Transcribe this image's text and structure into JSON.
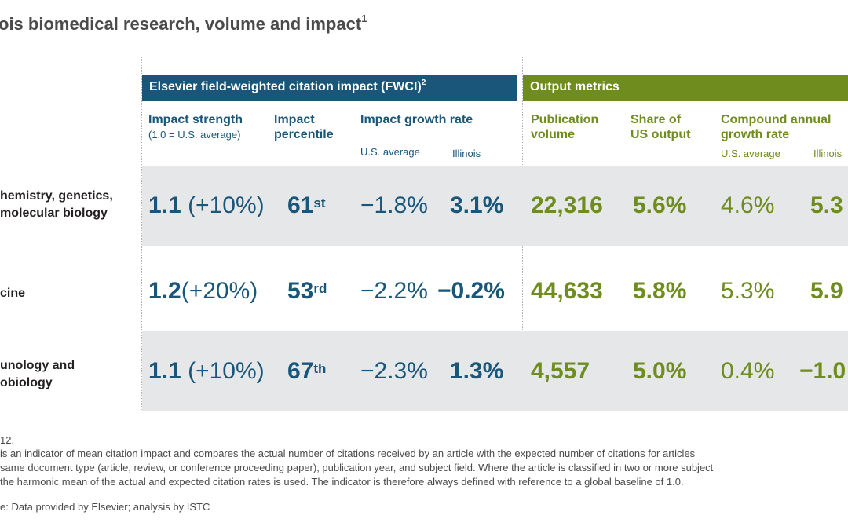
{
  "title": {
    "text": "ois biomedical research, volume and impact",
    "sup": "1"
  },
  "groups": {
    "fwci": {
      "label": "Elsevier field-weighted citation impact (FWCI)",
      "sup": "2"
    },
    "output": {
      "label": "Output metrics"
    }
  },
  "headers": {
    "impact_strength": {
      "line1": "Impact strength",
      "sub": "(1.0 = U.S. average)"
    },
    "impact_percentile": {
      "line1": "Impact",
      "line2": "percentile"
    },
    "impact_growth": {
      "line1": "Impact growth rate",
      "sub_us": "U.S. average",
      "sub_il": "Illinois"
    },
    "pub_volume": {
      "line1": "Publication",
      "line2": "volume"
    },
    "share_us": {
      "line1": "Share of",
      "line2": "US output"
    },
    "cagr": {
      "line1": "Compound annual",
      "line2": "growth rate",
      "sub_us": "U.S. average",
      "sub_il": "Illinois"
    }
  },
  "rows": [
    {
      "label1": "hemistry, genetics,",
      "label2": "molecular biology",
      "strength": "1.1",
      "strength_pct": "(+10%)",
      "percentile": "61",
      "percentile_suffix": "st",
      "growth_us": "−1.8%",
      "growth_il": "3.1%",
      "volume": "22,316",
      "share": "5.6%",
      "cagr_us": "4.6%",
      "cagr_il": "5.3"
    },
    {
      "label1": "cine",
      "label2": "",
      "strength": "1.2",
      "strength_pct": "(+20%)",
      "percentile": "53",
      "percentile_suffix": "rd",
      "growth_us": "−2.2%",
      "growth_il": "−0.2%",
      "volume": "44,633",
      "share": "5.8%",
      "cagr_us": "5.3%",
      "cagr_il": "5.9"
    },
    {
      "label1": "unology and",
      "label2": "obiology",
      "strength": "1.1",
      "strength_pct": "(+10%)",
      "percentile": "67",
      "percentile_suffix": "th",
      "growth_us": "−2.3%",
      "growth_il": "1.3%",
      "volume": "4,557",
      "share": "5.0%",
      "cagr_us": "0.4%",
      "cagr_il": "−1.0"
    }
  ],
  "footnotes": {
    "note0": "12.",
    "note1a": "is an indicator of mean citation impact and compares the actual number of citations received by an article with the expected number of citations for articles",
    "note1b": "same document type (article, review, or conference proceeding paper), publication year, and subject field. Where the article is classified in two or more subject",
    "note1c": "the harmonic mean of the actual and expected citation rates is used. The indicator is therefore always defined with reference to a global baseline of 1.0.",
    "source": "e: Data provided by Elsevier; analysis by ISTC"
  },
  "colors": {
    "blue": "#1a567a",
    "green": "#6f8c1f",
    "band": "#e6e7e8"
  }
}
